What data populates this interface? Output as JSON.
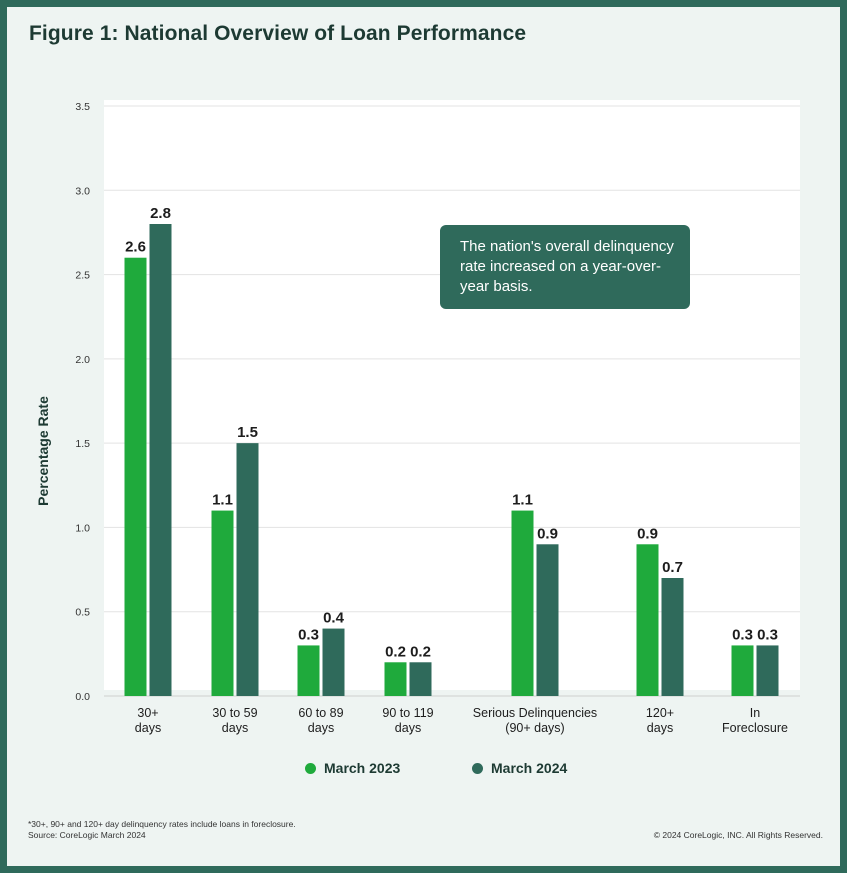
{
  "title": "Figure 1: National Overview of Loan Performance",
  "callout": "The nation's overall delinquency rate increased on a year-over-year basis.",
  "footnote": {
    "line1": "*30+, 90+ and 120+ day delinquency rates include loans in foreclosure.",
    "line2": "Source: CoreLogic March 2024"
  },
  "copyright": "© 2024 CoreLogic, INC. All Rights Reserved.",
  "colors": {
    "march2023": "#1faa3c",
    "march2024": "#2f6a5b",
    "background": "#eef4f2",
    "border": "#2f6a5b"
  },
  "chart_data": {
    "type": "bar",
    "title": "Figure 1: National Overview of Loan Performance",
    "xlabel": "",
    "ylabel": "Percentage Rate",
    "ylim": [
      0,
      3.5
    ],
    "yticks": [
      "0.0",
      "0.5",
      "1.0",
      "1.5",
      "2.0",
      "2.5",
      "3.0",
      "3.5"
    ],
    "grid": true,
    "legend_position": "bottom",
    "categories": [
      [
        "30+",
        "days"
      ],
      [
        "30 to 59",
        "days"
      ],
      [
        "60 to 89",
        "days"
      ],
      [
        "90 to 119",
        "days"
      ],
      [
        "Serious Delinquencies",
        "(90+ days)"
      ],
      [
        "120+",
        "days"
      ],
      [
        "In",
        "Foreclosure"
      ]
    ],
    "series": [
      {
        "name": "March 2023",
        "values": [
          2.6,
          1.1,
          0.3,
          0.2,
          1.1,
          0.9,
          0.3
        ],
        "labels": [
          "2.6",
          "1.1",
          "0.3",
          "0.2",
          "1.1",
          "0.9",
          "0.3"
        ]
      },
      {
        "name": "March 2024",
        "values": [
          2.8,
          1.5,
          0.4,
          0.2,
          0.9,
          0.7,
          0.3
        ],
        "labels": [
          "2.8",
          "1.5",
          "0.4",
          "0.2",
          "0.9",
          "0.7",
          "0.3"
        ]
      }
    ]
  }
}
